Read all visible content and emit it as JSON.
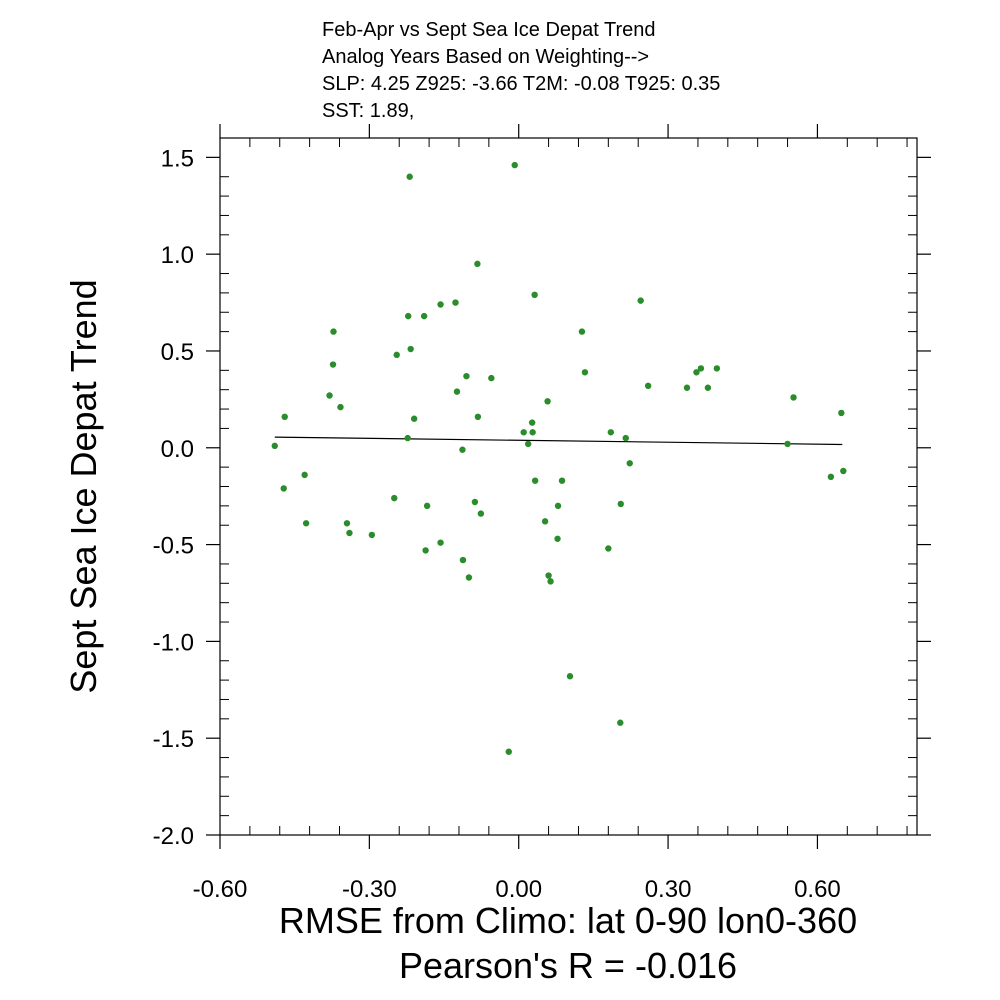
{
  "chart_data": {
    "type": "scatter",
    "title_lines": [
      "Feb-Apr vs Sept Sea Ice Depat Trend",
      "Analog Years Based on Weighting-->",
      "SLP:  4.25 Z925: -3.66 T2M: -0.08 T925:  0.35",
      "SST:  1.89,"
    ],
    "xlabel": "RMSE from Climo: lat 0-90 lon0-360",
    "subtitle": "Pearson's R = -0.016",
    "ylabel": "Sept Sea Ice Depat Trend",
    "xlim": [
      -0.6,
      0.8
    ],
    "ylim": [
      -2.0,
      1.6
    ],
    "x_ticks": [
      -0.6,
      -0.3,
      0.0,
      0.3,
      0.6
    ],
    "x_tick_labels": [
      "-0.60",
      "-0.30",
      "0.00",
      "0.30",
      "0.60"
    ],
    "y_ticks": [
      -2.0,
      -1.5,
      -1.0,
      -0.5,
      0.0,
      0.5,
      1.0,
      1.5
    ],
    "y_tick_labels": [
      "-2.0",
      "-1.5",
      "-1.0",
      "-0.5",
      "0.0",
      "0.5",
      "1.0",
      "1.5"
    ],
    "grid": false,
    "point_color": "#2a8c2a",
    "trend_line": {
      "x": [
        -0.49,
        0.65
      ],
      "y": [
        0.055,
        0.017
      ],
      "color": "#000000"
    },
    "points": [
      {
        "x": -0.49,
        "y": 0.01
      },
      {
        "x": -0.47,
        "y": 0.16
      },
      {
        "x": -0.472,
        "y": -0.21
      },
      {
        "x": -0.43,
        "y": -0.14
      },
      {
        "x": -0.427,
        "y": -0.39
      },
      {
        "x": -0.38,
        "y": 0.27
      },
      {
        "x": -0.372,
        "y": 0.6
      },
      {
        "x": -0.373,
        "y": 0.43
      },
      {
        "x": -0.358,
        "y": 0.21
      },
      {
        "x": -0.345,
        "y": -0.39
      },
      {
        "x": -0.34,
        "y": -0.44
      },
      {
        "x": -0.295,
        "y": -0.45
      },
      {
        "x": -0.25,
        "y": -0.26
      },
      {
        "x": -0.245,
        "y": 0.48
      },
      {
        "x": -0.223,
        "y": 0.05
      },
      {
        "x": -0.222,
        "y": 0.68
      },
      {
        "x": -0.219,
        "y": 1.4
      },
      {
        "x": -0.217,
        "y": 0.51
      },
      {
        "x": -0.21,
        "y": 0.15
      },
      {
        "x": -0.19,
        "y": 0.68
      },
      {
        "x": -0.187,
        "y": -0.53
      },
      {
        "x": -0.184,
        "y": -0.3
      },
      {
        "x": -0.157,
        "y": 0.74
      },
      {
        "x": -0.157,
        "y": -0.49
      },
      {
        "x": -0.127,
        "y": 0.75
      },
      {
        "x": -0.124,
        "y": 0.29
      },
      {
        "x": -0.113,
        "y": -0.01
      },
      {
        "x": -0.112,
        "y": -0.58
      },
      {
        "x": -0.105,
        "y": 0.37
      },
      {
        "x": -0.1,
        "y": -0.67
      },
      {
        "x": -0.088,
        "y": -0.28
      },
      {
        "x": -0.083,
        "y": 0.95
      },
      {
        "x": -0.082,
        "y": 0.16
      },
      {
        "x": -0.076,
        "y": -0.34
      },
      {
        "x": -0.055,
        "y": 0.36
      },
      {
        "x": -0.02,
        "y": -1.57
      },
      {
        "x": -0.008,
        "y": 1.46
      },
      {
        "x": 0.01,
        "y": 0.08
      },
      {
        "x": 0.019,
        "y": 0.02
      },
      {
        "x": 0.027,
        "y": 0.13
      },
      {
        "x": 0.028,
        "y": 0.08
      },
      {
        "x": 0.032,
        "y": 0.79
      },
      {
        "x": 0.033,
        "y": -0.17
      },
      {
        "x": 0.053,
        "y": -0.38
      },
      {
        "x": 0.058,
        "y": 0.24
      },
      {
        "x": 0.06,
        "y": -0.66
      },
      {
        "x": 0.064,
        "y": -0.69
      },
      {
        "x": 0.078,
        "y": -0.47
      },
      {
        "x": 0.079,
        "y": -0.3
      },
      {
        "x": 0.087,
        "y": -0.17
      },
      {
        "x": 0.103,
        "y": -1.18
      },
      {
        "x": 0.127,
        "y": 0.6
      },
      {
        "x": 0.133,
        "y": 0.39
      },
      {
        "x": 0.18,
        "y": -0.52
      },
      {
        "x": 0.185,
        "y": 0.08
      },
      {
        "x": 0.204,
        "y": -1.42
      },
      {
        "x": 0.205,
        "y": -0.29
      },
      {
        "x": 0.215,
        "y": 0.05
      },
      {
        "x": 0.223,
        "y": -0.08
      },
      {
        "x": 0.245,
        "y": 0.76
      },
      {
        "x": 0.26,
        "y": 0.32
      },
      {
        "x": 0.338,
        "y": 0.31
      },
      {
        "x": 0.357,
        "y": 0.39
      },
      {
        "x": 0.366,
        "y": 0.41
      },
      {
        "x": 0.38,
        "y": 0.31
      },
      {
        "x": 0.398,
        "y": 0.41
      },
      {
        "x": 0.54,
        "y": 0.02
      },
      {
        "x": 0.552,
        "y": 0.26
      },
      {
        "x": 0.627,
        "y": -0.15
      },
      {
        "x": 0.648,
        "y": 0.18
      },
      {
        "x": 0.652,
        "y": -0.12
      }
    ]
  }
}
